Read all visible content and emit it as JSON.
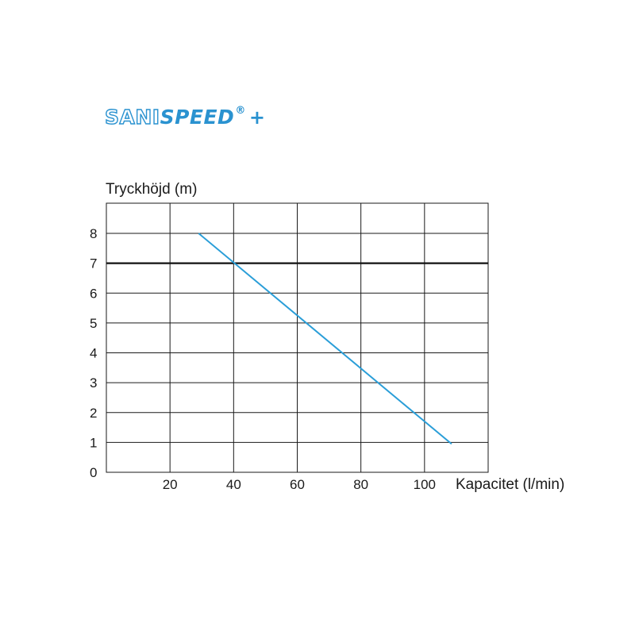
{
  "logo": {
    "part1": "SANI",
    "part2": "SPEED",
    "registered": "®",
    "plus": "+"
  },
  "colors": {
    "series": "#2a9ed8",
    "grid": "#1a1a1a",
    "brand": "#2a92d0"
  },
  "chart_data": {
    "type": "line",
    "ylabel": "Tryckhöjd (m)",
    "xlabel": "Kapacitet (l/min)",
    "xlim": [
      0,
      120
    ],
    "ylim": [
      0,
      8
    ],
    "y_ticks": [
      "0",
      "1",
      "2",
      "3",
      "4",
      "5",
      "6",
      "7",
      "8"
    ],
    "x_ticks": [
      {
        "value": 20,
        "label": "20"
      },
      {
        "value": 40,
        "label": "40"
      },
      {
        "value": 60,
        "label": "60"
      },
      {
        "value": 80,
        "label": "80"
      },
      {
        "value": 100,
        "label": "100"
      }
    ],
    "grid": true,
    "reference_line": {
      "y": 7
    },
    "series": [
      {
        "x": [
          29,
          108.5
        ],
        "y": [
          8,
          0.95
        ]
      }
    ]
  }
}
